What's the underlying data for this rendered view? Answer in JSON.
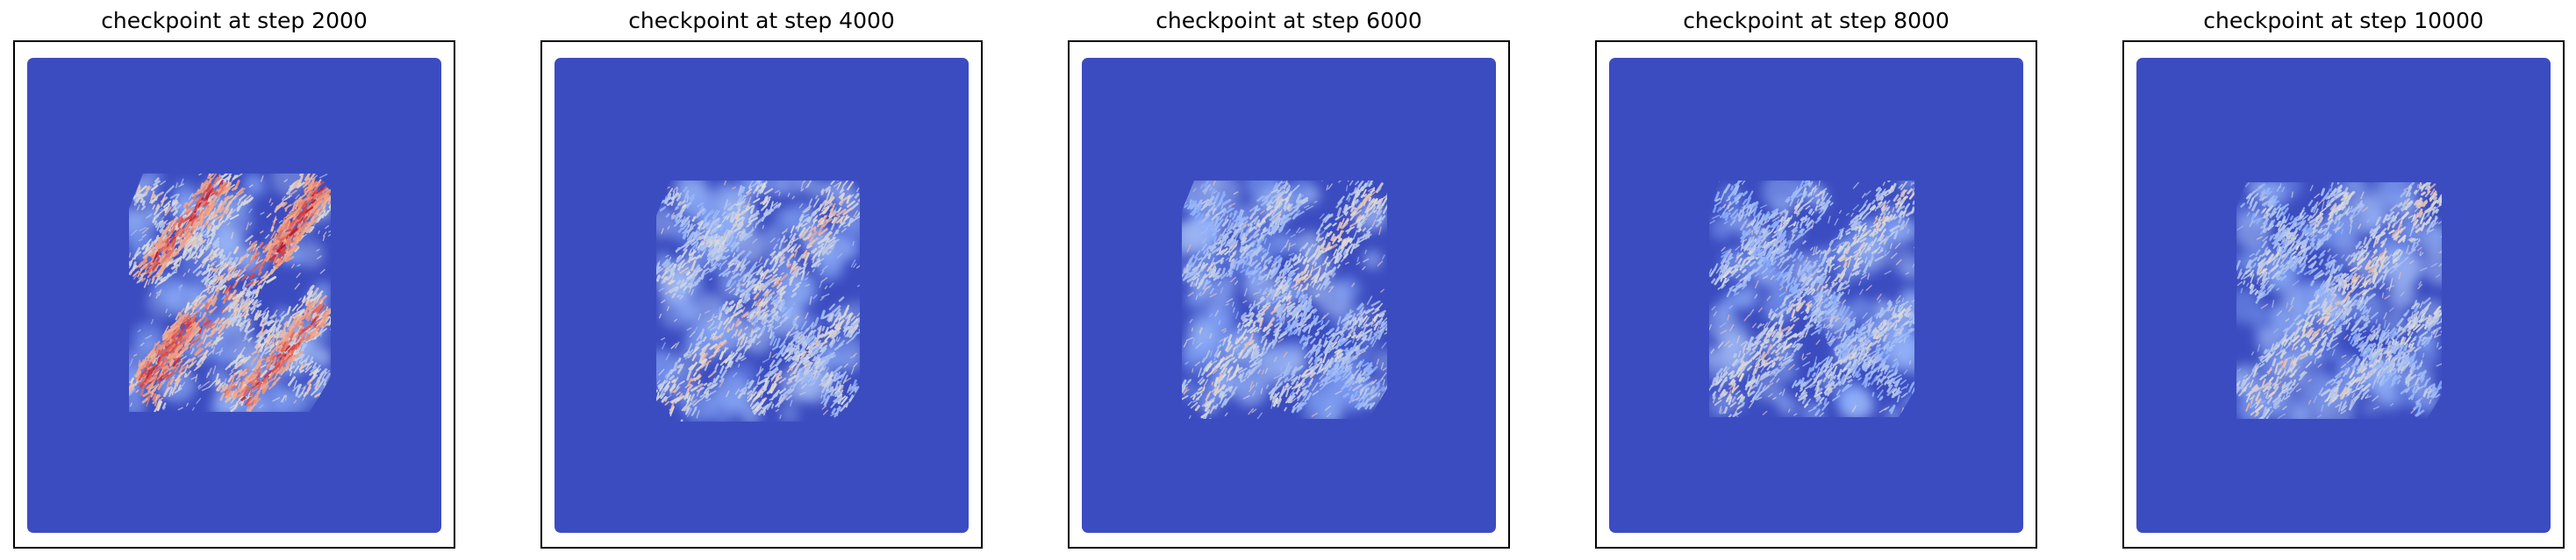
{
  "chart_data": [
    {
      "type": "heatmap",
      "title": "checkpoint at step 2000",
      "step": 2000,
      "colormap": "coolwarm",
      "background": "#3b4cc0",
      "intensity": 1.0,
      "xticks": [],
      "yticks": [],
      "grid": false
    },
    {
      "type": "heatmap",
      "title": "checkpoint at step 4000",
      "step": 4000,
      "colormap": "coolwarm",
      "background": "#3b4cc0",
      "intensity": 0.62,
      "xticks": [],
      "yticks": [],
      "grid": false
    },
    {
      "type": "heatmap",
      "title": "checkpoint at step 6000",
      "step": 6000,
      "colormap": "coolwarm",
      "background": "#3b4cc0",
      "intensity": 0.52,
      "xticks": [],
      "yticks": [],
      "grid": false
    },
    {
      "type": "heatmap",
      "title": "checkpoint at step 8000",
      "step": 8000,
      "colormap": "coolwarm",
      "background": "#3b4cc0",
      "intensity": 0.5,
      "xticks": [],
      "yticks": [],
      "grid": false
    },
    {
      "type": "heatmap",
      "title": "checkpoint at step 10000",
      "step": 10000,
      "colormap": "coolwarm",
      "background": "#3b4cc0",
      "intensity": 0.55,
      "xticks": [],
      "yticks": [],
      "grid": false
    }
  ]
}
